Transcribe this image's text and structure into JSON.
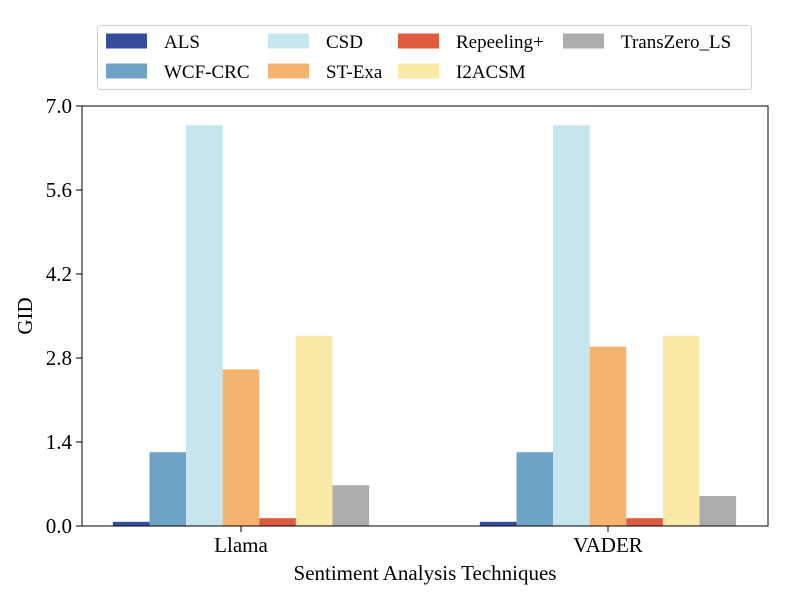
{
  "chart_data": {
    "type": "bar",
    "title": "",
    "xlabel": "Sentiment Analysis Techniques",
    "ylabel": "GID",
    "categories": [
      "Llama",
      "VADER"
    ],
    "ylim": [
      0.0,
      7.0
    ],
    "yticks": [
      "0.0",
      "1.4",
      "2.8",
      "4.2",
      "5.6",
      "7.0"
    ],
    "grid": false,
    "legend_position": "top",
    "series": [
      {
        "name": "ALS",
        "color": "#344e9c",
        "values": [
          0.07,
          0.07
        ]
      },
      {
        "name": "WCF-CRC",
        "color": "#6fa3c6",
        "values": [
          1.23,
          1.23
        ]
      },
      {
        "name": "CSD",
        "color": "#c7e5ed",
        "values": [
          6.68,
          6.68
        ]
      },
      {
        "name": "ST-Exa",
        "color": "#f4b470",
        "values": [
          2.61,
          2.99
        ]
      },
      {
        "name": "Repeeling+",
        "color": "#de5b3e",
        "values": [
          0.13,
          0.13
        ]
      },
      {
        "name": "I2ACSM",
        "color": "#fbe9a8",
        "values": [
          3.17,
          3.17
        ]
      },
      {
        "name": "TransZero_LS",
        "color": "#adadad",
        "values": [
          0.68,
          0.5
        ]
      }
    ]
  }
}
